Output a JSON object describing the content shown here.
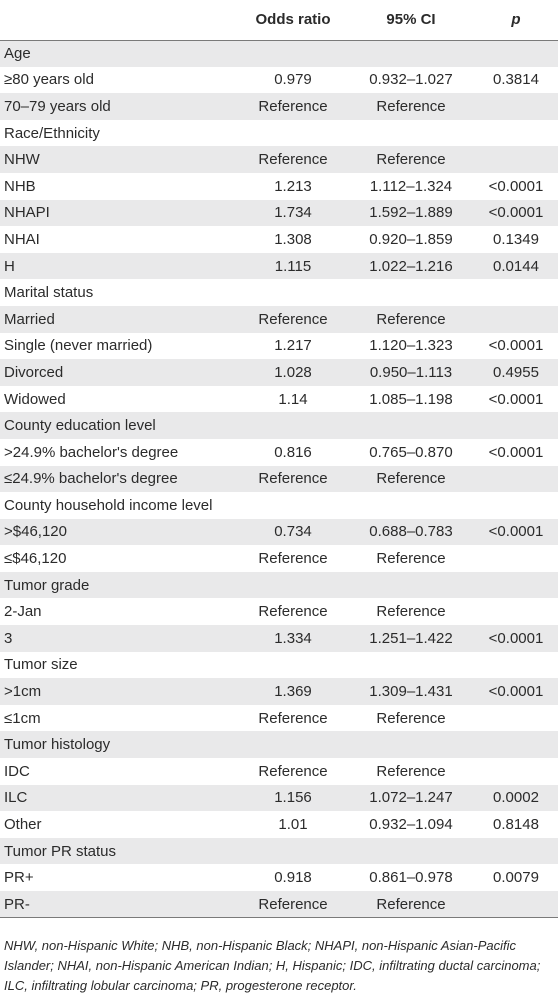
{
  "table": {
    "headers": [
      "",
      "Odds ratio",
      "95% CI",
      "p"
    ],
    "rows": [
      [
        "Age",
        "",
        "",
        ""
      ],
      [
        "≥80 years old",
        "0.979",
        "0.932–1.027",
        "0.3814"
      ],
      [
        "70–79 years old",
        "Reference",
        "Reference",
        ""
      ],
      [
        "Race/Ethnicity",
        "",
        "",
        ""
      ],
      [
        "NHW",
        "Reference",
        "Reference",
        ""
      ],
      [
        "NHB",
        "1.213",
        "1.112–1.324",
        "<0.0001"
      ],
      [
        "NHAPI",
        "1.734",
        "1.592–1.889",
        "<0.0001"
      ],
      [
        "NHAI",
        "1.308",
        "0.920–1.859",
        "0.1349"
      ],
      [
        "H",
        "1.115",
        "1.022–1.216",
        "0.0144"
      ],
      [
        "Marital status",
        "",
        "",
        ""
      ],
      [
        "Married",
        "Reference",
        "Reference",
        ""
      ],
      [
        "Single (never married)",
        "1.217",
        "1.120–1.323",
        "<0.0001"
      ],
      [
        "Divorced",
        "1.028",
        "0.950–1.113",
        "0.4955"
      ],
      [
        "Widowed",
        "1.14",
        "1.085–1.198",
        "<0.0001"
      ],
      [
        "County education level",
        "",
        "",
        ""
      ],
      [
        ">24.9% bachelor's degree",
        "0.816",
        "0.765–0.870",
        "<0.0001"
      ],
      [
        "≤24.9% bachelor's degree",
        "Reference",
        "Reference",
        ""
      ],
      [
        "County household income level",
        "",
        "",
        ""
      ],
      [
        ">$46,120",
        "0.734",
        "0.688–0.783",
        "<0.0001"
      ],
      [
        "≤$46,120",
        "Reference",
        "Reference",
        ""
      ],
      [
        "Tumor grade",
        "",
        "",
        ""
      ],
      [
        "2-Jan",
        "Reference",
        "Reference",
        ""
      ],
      [
        "3",
        "1.334",
        "1.251–1.422",
        "<0.0001"
      ],
      [
        "Tumor size",
        "",
        "",
        ""
      ],
      [
        ">1cm",
        "1.369",
        "1.309–1.431",
        "<0.0001"
      ],
      [
        "≤1cm",
        "Reference",
        "Reference",
        ""
      ],
      [
        "Tumor histology",
        "",
        "",
        ""
      ],
      [
        "IDC",
        "Reference",
        "Reference",
        ""
      ],
      [
        "ILC",
        "1.156",
        "1.072–1.247",
        "0.0002"
      ],
      [
        "Other",
        "1.01",
        "0.932–1.094",
        "0.8148"
      ],
      [
        "Tumor PR status",
        "",
        "",
        ""
      ],
      [
        "PR+",
        "0.918",
        "0.861–0.978",
        "0.0079"
      ],
      [
        "PR-",
        "Reference",
        "Reference",
        ""
      ]
    ]
  },
  "footnote": "NHW, non-Hispanic White; NHB, non-Hispanic Black; NHAPI, non-Hispanic Asian-Pacific Islander; NHAI, non-Hispanic American Indian; H, Hispanic; IDC, infiltrating ductal carcinoma; ILC, infiltrating lobular carcinoma; PR, progesterone receptor."
}
